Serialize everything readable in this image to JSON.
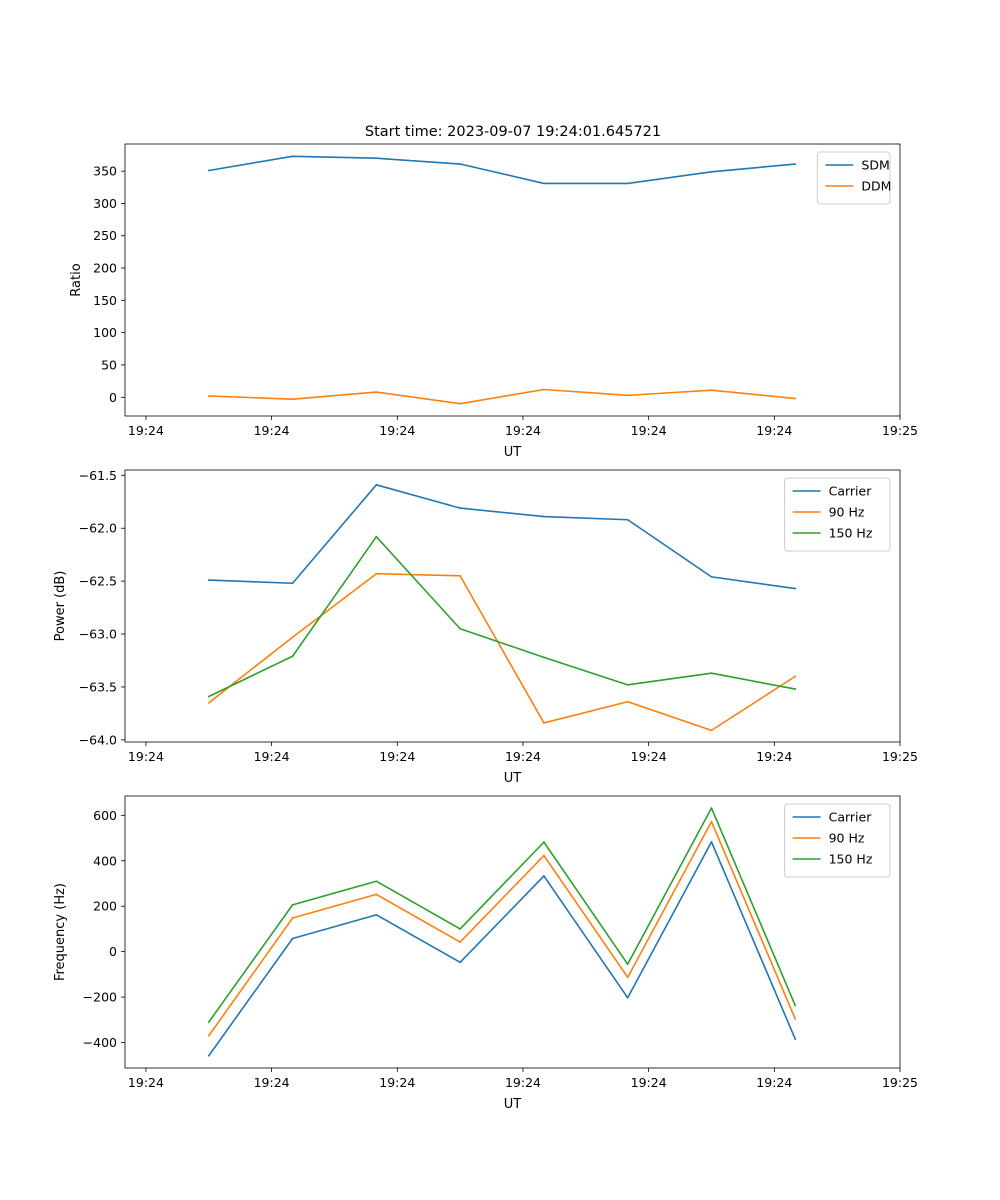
{
  "figure": {
    "title": "Start time: 2023-09-07 19:24:01.645721"
  },
  "colors": {
    "blue": "#1f77b4",
    "orange": "#ff7f0e",
    "green": "#2ca02c"
  },
  "chart_data": [
    {
      "type": "line",
      "title": "Start time: 2023-09-07 19:24:01.645721",
      "xlabel": "UT",
      "ylabel": "Ratio",
      "x": [
        1,
        2,
        3,
        4,
        5,
        6,
        7,
        8
      ],
      "xticks": [
        {
          "pos": 0.25,
          "label": "19:24"
        },
        {
          "pos": 1.75,
          "label": "19:24"
        },
        {
          "pos": 3.25,
          "label": "19:24"
        },
        {
          "pos": 4.75,
          "label": "19:24"
        },
        {
          "pos": 6.25,
          "label": "19:24"
        },
        {
          "pos": 7.75,
          "label": "19:24"
        },
        {
          "pos": 9.25,
          "label": "19:25"
        }
      ],
      "xlim": [
        0.0,
        9.25
      ],
      "yticks": [
        0,
        50,
        100,
        150,
        200,
        250,
        300,
        350
      ],
      "ylim": [
        -29,
        392
      ],
      "legend": "top-right",
      "series": [
        {
          "name": "SDM",
          "color": "#1f77b4",
          "values": [
            351,
            373,
            370,
            361,
            331,
            331,
            349,
            361
          ]
        },
        {
          "name": "DDM",
          "color": "#ff7f0e",
          "values": [
            2,
            -3,
            8,
            -10,
            12,
            3,
            11,
            -2
          ]
        }
      ]
    },
    {
      "type": "line",
      "title": "",
      "xlabel": "UT",
      "ylabel": "Power (dB)",
      "x": [
        1,
        2,
        3,
        4,
        5,
        6,
        7,
        8
      ],
      "xticks": [
        {
          "pos": 0.25,
          "label": "19:24"
        },
        {
          "pos": 1.75,
          "label": "19:24"
        },
        {
          "pos": 3.25,
          "label": "19:24"
        },
        {
          "pos": 4.75,
          "label": "19:24"
        },
        {
          "pos": 6.25,
          "label": "19:24"
        },
        {
          "pos": 7.75,
          "label": "19:24"
        },
        {
          "pos": 9.25,
          "label": "19:25"
        }
      ],
      "xlim": [
        0.0,
        9.25
      ],
      "yticks": [
        -64.0,
        -63.5,
        -63.0,
        -62.5,
        -62.0,
        -61.5
      ],
      "ytick_labels": [
        "−64.0",
        "−63.5",
        "−63.0",
        "−62.5",
        "−62.0",
        "−61.5"
      ],
      "ylim": [
        -64.02,
        -61.45
      ],
      "legend": "top-right",
      "series": [
        {
          "name": "Carrier",
          "color": "#1f77b4",
          "values": [
            -62.49,
            -62.52,
            -61.59,
            -61.81,
            -61.89,
            -61.92,
            -62.46,
            -62.57
          ]
        },
        {
          "name": "90 Hz",
          "color": "#ff7f0e",
          "values": [
            -63.65,
            -63.03,
            -62.43,
            -62.45,
            -63.84,
            -63.64,
            -63.91,
            -63.4
          ]
        },
        {
          "name": "150 Hz",
          "color": "#2ca02c",
          "values": [
            -63.59,
            -63.21,
            -62.08,
            -62.95,
            -63.22,
            -63.48,
            -63.37,
            -63.52
          ]
        }
      ]
    },
    {
      "type": "line",
      "title": "",
      "xlabel": "UT",
      "ylabel": "Frequency (Hz)",
      "x": [
        1,
        2,
        3,
        4,
        5,
        6,
        7,
        8
      ],
      "xticks": [
        {
          "pos": 0.25,
          "label": "19:24"
        },
        {
          "pos": 1.75,
          "label": "19:24"
        },
        {
          "pos": 3.25,
          "label": "19:24"
        },
        {
          "pos": 4.75,
          "label": "19:24"
        },
        {
          "pos": 6.25,
          "label": "19:24"
        },
        {
          "pos": 7.75,
          "label": "19:24"
        },
        {
          "pos": 9.25,
          "label": "19:25"
        }
      ],
      "xlim": [
        0.0,
        9.25
      ],
      "yticks": [
        -400,
        -200,
        0,
        200,
        400,
        600
      ],
      "ytick_labels": [
        "−400",
        "−200",
        "0",
        "200",
        "400",
        "600"
      ],
      "ylim": [
        -512,
        685
      ],
      "legend": "top-right",
      "series": [
        {
          "name": "Carrier",
          "color": "#1f77b4",
          "values": [
            -458,
            58,
            162,
            -47,
            333,
            -203,
            483,
            -385
          ]
        },
        {
          "name": "90 Hz",
          "color": "#ff7f0e",
          "values": [
            -370,
            148,
            252,
            42,
            423,
            -113,
            572,
            -296
          ]
        },
        {
          "name": "150 Hz",
          "color": "#2ca02c",
          "values": [
            -310,
            206,
            310,
            100,
            482,
            -55,
            632,
            -237
          ]
        }
      ]
    }
  ]
}
